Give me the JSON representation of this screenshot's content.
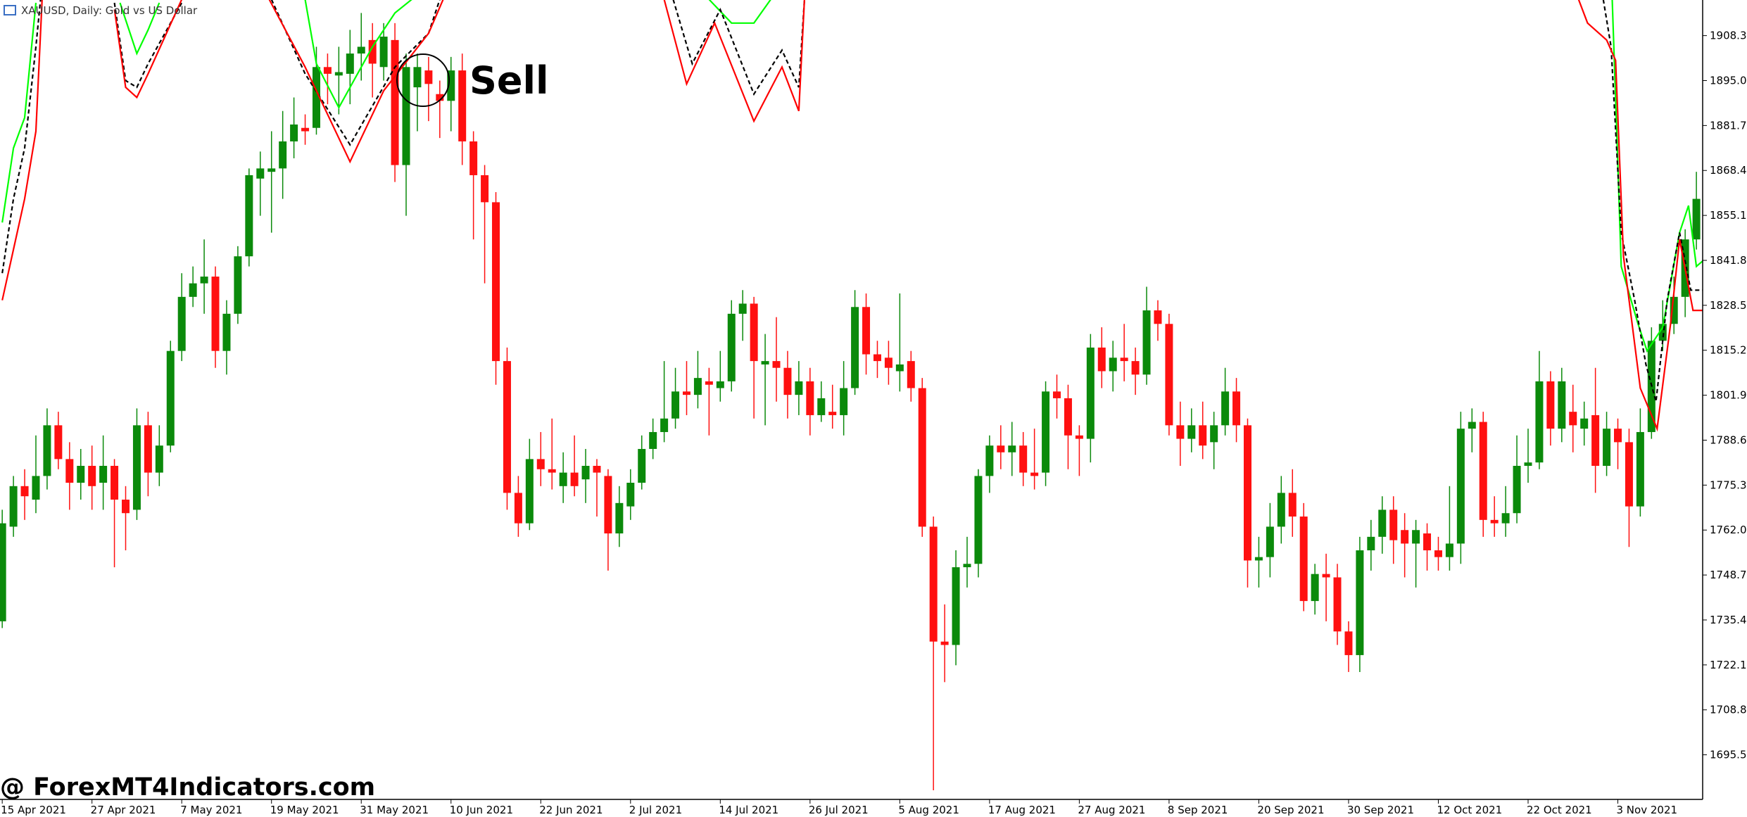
{
  "chart_data": {
    "type": "candlestick",
    "header": "XAUUSD, Daily:  Gold vs US Dollar",
    "annotation": "Sell",
    "watermark": "@ ForexMT4Indicators.com",
    "up_color": "#0b8a0b",
    "down_color": "#ff1010",
    "ylim": [
      1682.3,
      1918.84
    ],
    "yticks": [
      {
        "value": 1908.3,
        "label": "1908.30"
      },
      {
        "value": 1895,
        "label": "1895.00"
      },
      {
        "value": 1881.7,
        "label": "1881.70"
      },
      {
        "value": 1868.4,
        "label": "1868.40"
      },
      {
        "value": 1855.1,
        "label": "1855.10"
      },
      {
        "value": 1841.8,
        "label": "1841.80"
      },
      {
        "value": 1828.5,
        "label": "1828.50"
      },
      {
        "value": 1815.2,
        "label": "1815.20"
      },
      {
        "value": 1801.9,
        "label": "1801.90"
      },
      {
        "value": 1788.6,
        "label": "1788.60"
      },
      {
        "value": 1775.3,
        "label": "1775.30"
      },
      {
        "value": 1762,
        "label": "1762.00"
      },
      {
        "value": 1748.7,
        "label": "1748.70"
      },
      {
        "value": 1735.4,
        "label": "1735.40"
      },
      {
        "value": 1722.1,
        "label": "1722.10"
      },
      {
        "value": 1708.8,
        "label": "1708.80"
      },
      {
        "value": 1695.5,
        "label": "1695.50"
      }
    ],
    "xticks": [
      {
        "value": 0,
        "label": "15 Apr 2021"
      },
      {
        "value": 8,
        "label": "27 Apr 2021"
      },
      {
        "value": 16,
        "label": "7 May 2021"
      },
      {
        "value": 24,
        "label": "19 May 2021"
      },
      {
        "value": 32,
        "label": "31 May 2021"
      },
      {
        "value": 40,
        "label": "10 Jun 2021"
      },
      {
        "value": 48,
        "label": "22 Jun 2021"
      },
      {
        "value": 56,
        "label": "2 Jul 2021"
      },
      {
        "value": 64,
        "label": "14 Jul 2021"
      },
      {
        "value": 72,
        "label": "26 Jul 2021"
      },
      {
        "value": 80,
        "label": "5 Aug 2021"
      },
      {
        "value": 88,
        "label": "17 Aug 2021"
      },
      {
        "value": 96,
        "label": "27 Aug 2021"
      },
      {
        "value": 104,
        "label": "8 Sep 2021"
      },
      {
        "value": 112,
        "label": "20 Sep 2021"
      },
      {
        "value": 120,
        "label": "30 Sep 2021"
      },
      {
        "value": 128,
        "label": "12 Oct 2021"
      },
      {
        "value": 136,
        "label": "22 Oct 2021"
      },
      {
        "value": 144,
        "label": "3 Nov 2021"
      }
    ],
    "open": [
      1735,
      1763,
      1775,
      1771,
      1778,
      1793,
      1783,
      1776,
      1781,
      1776,
      1781,
      1771,
      1768,
      1793,
      1779,
      1787,
      1815,
      1831,
      1835,
      1837,
      1815,
      1826,
      1843,
      1866,
      1868,
      1869,
      1877,
      1881,
      1881,
      1899,
      1896.5,
      1897,
      1903,
      1907,
      1899,
      1907,
      1870,
      1893,
      1898,
      1891,
      1889,
      1898,
      1877,
      1867,
      1859,
      1812,
      1773,
      1764,
      1783,
      1780,
      1775,
      1779,
      1777,
      1781,
      1778,
      1761,
      1769,
      1776,
      1786,
      1791,
      1795,
      1803,
      1802,
      1806,
      1804,
      1806,
      1826,
      1829,
      1811,
      1812,
      1810,
      1802,
      1806,
      1796,
      1797,
      1796,
      1804,
      1828,
      1814,
      1813,
      1809,
      1812,
      1804,
      1763,
      1729,
      1728,
      1751,
      1752,
      1778,
      1787,
      1785,
      1787,
      1779,
      1779,
      1803,
      1801,
      1790,
      1789,
      1816,
      1809,
      1813,
      1812,
      1808,
      1827,
      1823,
      1793,
      1789,
      1793,
      1788,
      1793,
      1803,
      1793,
      1753,
      1754,
      1763,
      1773,
      1766,
      1741,
      1749,
      1748,
      1732,
      1725,
      1756,
      1760,
      1768,
      1762,
      1758,
      1761,
      1756,
      1754,
      1758,
      1792,
      1794,
      1765,
      1764,
      1767,
      1781,
      1782,
      1806,
      1792,
      1797,
      1792,
      1796,
      1781,
      1792,
      1788,
      1769,
      1791,
      1818,
      1823,
      1831,
      1848,
      1860
    ],
    "high": [
      1768,
      1778,
      1780,
      1790,
      1798,
      1797,
      1788,
      1786,
      1787,
      1790,
      1783,
      1775,
      1798,
      1797,
      1793,
      1818,
      1838,
      1840,
      1848,
      1840,
      1830,
      1846,
      1869,
      1874,
      1880,
      1886,
      1890,
      1885,
      1905,
      1903,
      1905,
      1910,
      1915,
      1912,
      1912,
      1912,
      1903,
      1903,
      1902,
      1895,
      1902,
      1903,
      1880,
      1870,
      1862,
      1816,
      1778,
      1789,
      1791,
      1795,
      1785,
      1790,
      1786,
      1783,
      1780,
      1775,
      1780,
      1790,
      1795,
      1812,
      1810,
      1812,
      1815,
      1810,
      1815,
      1830,
      1833,
      1831,
      1820,
      1825,
      1815,
      1812,
      1810,
      1806,
      1805,
      1812,
      1833,
      1832,
      1818,
      1818,
      1832,
      1815,
      1807,
      1766,
      1740,
      1756,
      1760,
      1780,
      1790,
      1793,
      1794,
      1791,
      1792,
      1806,
      1808,
      1805,
      1793,
      1820,
      1822,
      1818,
      1823,
      1816,
      1834,
      1830,
      1826,
      1800,
      1798,
      1800,
      1797,
      1810,
      1807,
      1795,
      1760,
      1770,
      1778,
      1780,
      1770,
      1752,
      1755,
      1752,
      1735,
      1760,
      1765,
      1772,
      1772,
      1767,
      1765,
      1764,
      1760,
      1775,
      1797,
      1798,
      1797,
      1772,
      1775,
      1790,
      1792,
      1815,
      1809,
      1810,
      1805,
      1800,
      1810,
      1797,
      1795,
      1792,
      1798,
      1822,
      1830,
      1837,
      1851,
      1868,
      1870
    ],
    "low": [
      1733,
      1760,
      1765,
      1767,
      1774,
      1780,
      1768,
      1771,
      1768,
      1768,
      1751,
      1756,
      1765,
      1772,
      1775,
      1785,
      1812,
      1828,
      1826,
      1810,
      1808,
      1823,
      1840,
      1855,
      1850,
      1860,
      1872,
      1876,
      1879,
      1888,
      1885,
      1888,
      1895,
      1890,
      1895,
      1865,
      1855,
      1880,
      1883,
      1878,
      1880,
      1870,
      1848,
      1835,
      1805,
      1768,
      1760,
      1762,
      1775,
      1774,
      1770,
      1772,
      1770,
      1766,
      1750,
      1757,
      1765,
      1774,
      1783,
      1788,
      1792,
      1796,
      1798,
      1790,
      1800,
      1803,
      1818,
      1795,
      1793,
      1800,
      1795,
      1796,
      1790,
      1794,
      1792,
      1790,
      1802,
      1808,
      1807,
      1805,
      1803,
      1800,
      1760,
      1685,
      1717,
      1722,
      1745,
      1748,
      1773,
      1780,
      1778,
      1775,
      1774,
      1775,
      1795,
      1780,
      1778,
      1782,
      1804,
      1803,
      1806,
      1802,
      1805,
      1818,
      1790,
      1781,
      1785,
      1783,
      1780,
      1790,
      1788,
      1745,
      1745,
      1748,
      1758,
      1760,
      1738,
      1737,
      1735,
      1728,
      1720,
      1720,
      1750,
      1755,
      1752,
      1748,
      1745,
      1750,
      1750,
      1750,
      1752,
      1785,
      1760,
      1760,
      1760,
      1764,
      1776,
      1780,
      1787,
      1788,
      1785,
      1787,
      1773,
      1778,
      1780,
      1757,
      1766,
      1789,
      1815,
      1820,
      1825,
      1845,
      1855
    ],
    "close": [
      1764,
      1775,
      1772,
      1778,
      1793,
      1783,
      1776,
      1781,
      1775,
      1781,
      1771,
      1767,
      1793,
      1779,
      1787,
      1815,
      1831,
      1835,
      1837,
      1815,
      1826,
      1843,
      1867,
      1869,
      1869,
      1877,
      1882,
      1880,
      1899,
      1897,
      1897.5,
      1903,
      1905,
      1900,
      1908,
      1870,
      1899,
      1899,
      1894,
      1889,
      1898,
      1877,
      1867,
      1859,
      1812,
      1773,
      1764,
      1783,
      1780,
      1779,
      1779,
      1775,
      1781,
      1779,
      1761,
      1770,
      1776,
      1786,
      1791,
      1795,
      1803,
      1802,
      1807,
      1805,
      1806,
      1826,
      1829,
      1812,
      1812,
      1810,
      1802,
      1806,
      1796,
      1801,
      1796,
      1804,
      1828,
      1814,
      1812,
      1810,
      1811,
      1804,
      1763,
      1729,
      1728,
      1751,
      1752,
      1778,
      1787,
      1785,
      1787,
      1779,
      1778,
      1803,
      1801,
      1790,
      1789,
      1816,
      1809,
      1813,
      1812,
      1808,
      1827,
      1823,
      1793,
      1789,
      1793,
      1787,
      1793,
      1803,
      1793,
      1753,
      1754,
      1763,
      1773,
      1766,
      1741,
      1749,
      1748,
      1732,
      1725,
      1756,
      1760,
      1768,
      1759,
      1758,
      1762,
      1756,
      1754,
      1758,
      1792,
      1794,
      1765,
      1764,
      1767,
      1781,
      1782,
      1806,
      1792,
      1806,
      1793,
      1795,
      1781,
      1792,
      1788,
      1769,
      1791,
      1818,
      1823,
      1831,
      1848,
      1860,
      1864
    ],
    "lines": [
      {
        "color": "#00ff00",
        "dashed": false,
        "x": [
          0,
          1,
          2,
          3
        ],
        "values": [
          1853,
          1875,
          1884,
          1918
        ]
      },
      {
        "color": "#000000",
        "dashed": true,
        "x": [
          0,
          1,
          2,
          3,
          3.5
        ],
        "values": [
          1838,
          1860,
          1875,
          1905,
          1922
        ]
      },
      {
        "color": "#ff0000",
        "dashed": false,
        "x": [
          0,
          1,
          2,
          3,
          3.6
        ],
        "values": [
          1830,
          1845,
          1860,
          1880,
          1922
        ]
      },
      {
        "color": "#00ff00",
        "dashed": false,
        "x": [
          10.5,
          12,
          13,
          14
        ],
        "values": [
          1918,
          1903,
          1910,
          1918
        ]
      },
      {
        "color": "#000000",
        "dashed": true,
        "x": [
          10,
          11,
          12,
          13,
          16
        ],
        "values": [
          1918,
          1895,
          1893,
          1900,
          1918
        ]
      },
      {
        "color": "#ff0000",
        "dashed": false,
        "x": [
          10,
          11,
          12,
          13,
          16
        ],
        "values": [
          1916,
          1893,
          1890,
          1897,
          1919
        ]
      },
      {
        "color": "#00ff00",
        "dashed": false,
        "x": [
          27,
          28,
          30,
          33,
          35,
          36.5
        ],
        "values": [
          1919,
          1900,
          1887,
          1905,
          1915,
          1919
        ]
      },
      {
        "color": "#000000",
        "dashed": true,
        "x": [
          24,
          27,
          31,
          35,
          38,
          39
        ],
        "values": [
          1919,
          1897,
          1876,
          1899,
          1909,
          1919
        ]
      },
      {
        "color": "#ff0000",
        "dashed": false,
        "x": [
          23.8,
          27,
          31,
          34,
          38,
          39.3
        ],
        "values": [
          1919,
          1899,
          1871,
          1892,
          1909,
          1919
        ]
      },
      {
        "color": "#00ff00",
        "dashed": false,
        "x": [
          63,
          65,
          67,
          68.5
        ],
        "values": [
          1919,
          1912,
          1912,
          1919
        ]
      },
      {
        "color": "#000000",
        "dashed": true,
        "x": [
          59.8,
          61.5,
          64,
          67,
          69.5,
          71,
          71.5
        ],
        "values": [
          1919,
          1900,
          1916,
          1891,
          1904,
          1893,
          1919
        ]
      },
      {
        "color": "#ff0000",
        "dashed": false,
        "x": [
          59,
          61,
          63.5,
          67,
          69.5,
          71,
          71.5
        ],
        "values": [
          1919,
          1894,
          1912,
          1883,
          1899,
          1886,
          1919
        ]
      },
      {
        "color": "#00ff00",
        "dashed": false,
        "x": [
          143.5,
          143.9,
          144.3,
          145.8,
          146.6,
          148,
          149.5,
          150.3,
          151,
          151.7
        ],
        "values": [
          1919,
          1880,
          1840,
          1823,
          1815,
          1822,
          1850,
          1858,
          1840,
          1842
        ]
      },
      {
        "color": "#000000",
        "dashed": true,
        "x": [
          142.7,
          143.4,
          144.3,
          145.5,
          146.5,
          147.4,
          148.4,
          149.5,
          150.5,
          151.7
        ],
        "values": [
          1919,
          1905,
          1850,
          1830,
          1811,
          1800,
          1830,
          1850,
          1833,
          1833
        ]
      },
      {
        "color": "#ff0000",
        "dashed": false,
        "x": [
          140.5,
          141.3,
          143,
          143.8,
          144.5,
          146,
          147.5,
          148.7,
          149.5,
          150.7,
          151.7
        ],
        "values": [
          1919,
          1912,
          1907,
          1901,
          1843,
          1804,
          1792,
          1823,
          1848,
          1827,
          1827
        ]
      }
    ]
  }
}
